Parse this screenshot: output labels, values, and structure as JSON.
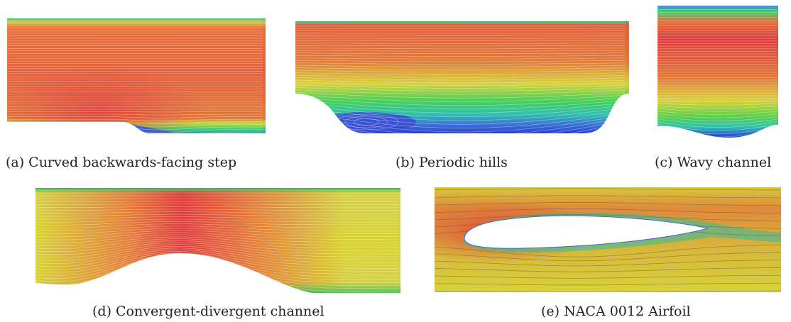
{
  "figure": {
    "panels": [
      {
        "label": "(a)",
        "caption": "Curved backwards-facing step"
      },
      {
        "label": "(b)",
        "caption": "Periodic hills"
      },
      {
        "label": "(c)",
        "caption": "Wavy channel"
      },
      {
        "label": "(d)",
        "caption": "Convergent-divergent channel"
      },
      {
        "label": "(e)",
        "caption": "NACA 0012 Airfoil"
      }
    ],
    "colors": {
      "high_velocity": "#e03c3c",
      "mid_velocity": "#d8d23a",
      "low_mid_velocity": "#2fd05a",
      "low_velocity": "#2a4fd8",
      "streamline_light": "#ffffff",
      "streamline_dark": "#555555"
    }
  }
}
